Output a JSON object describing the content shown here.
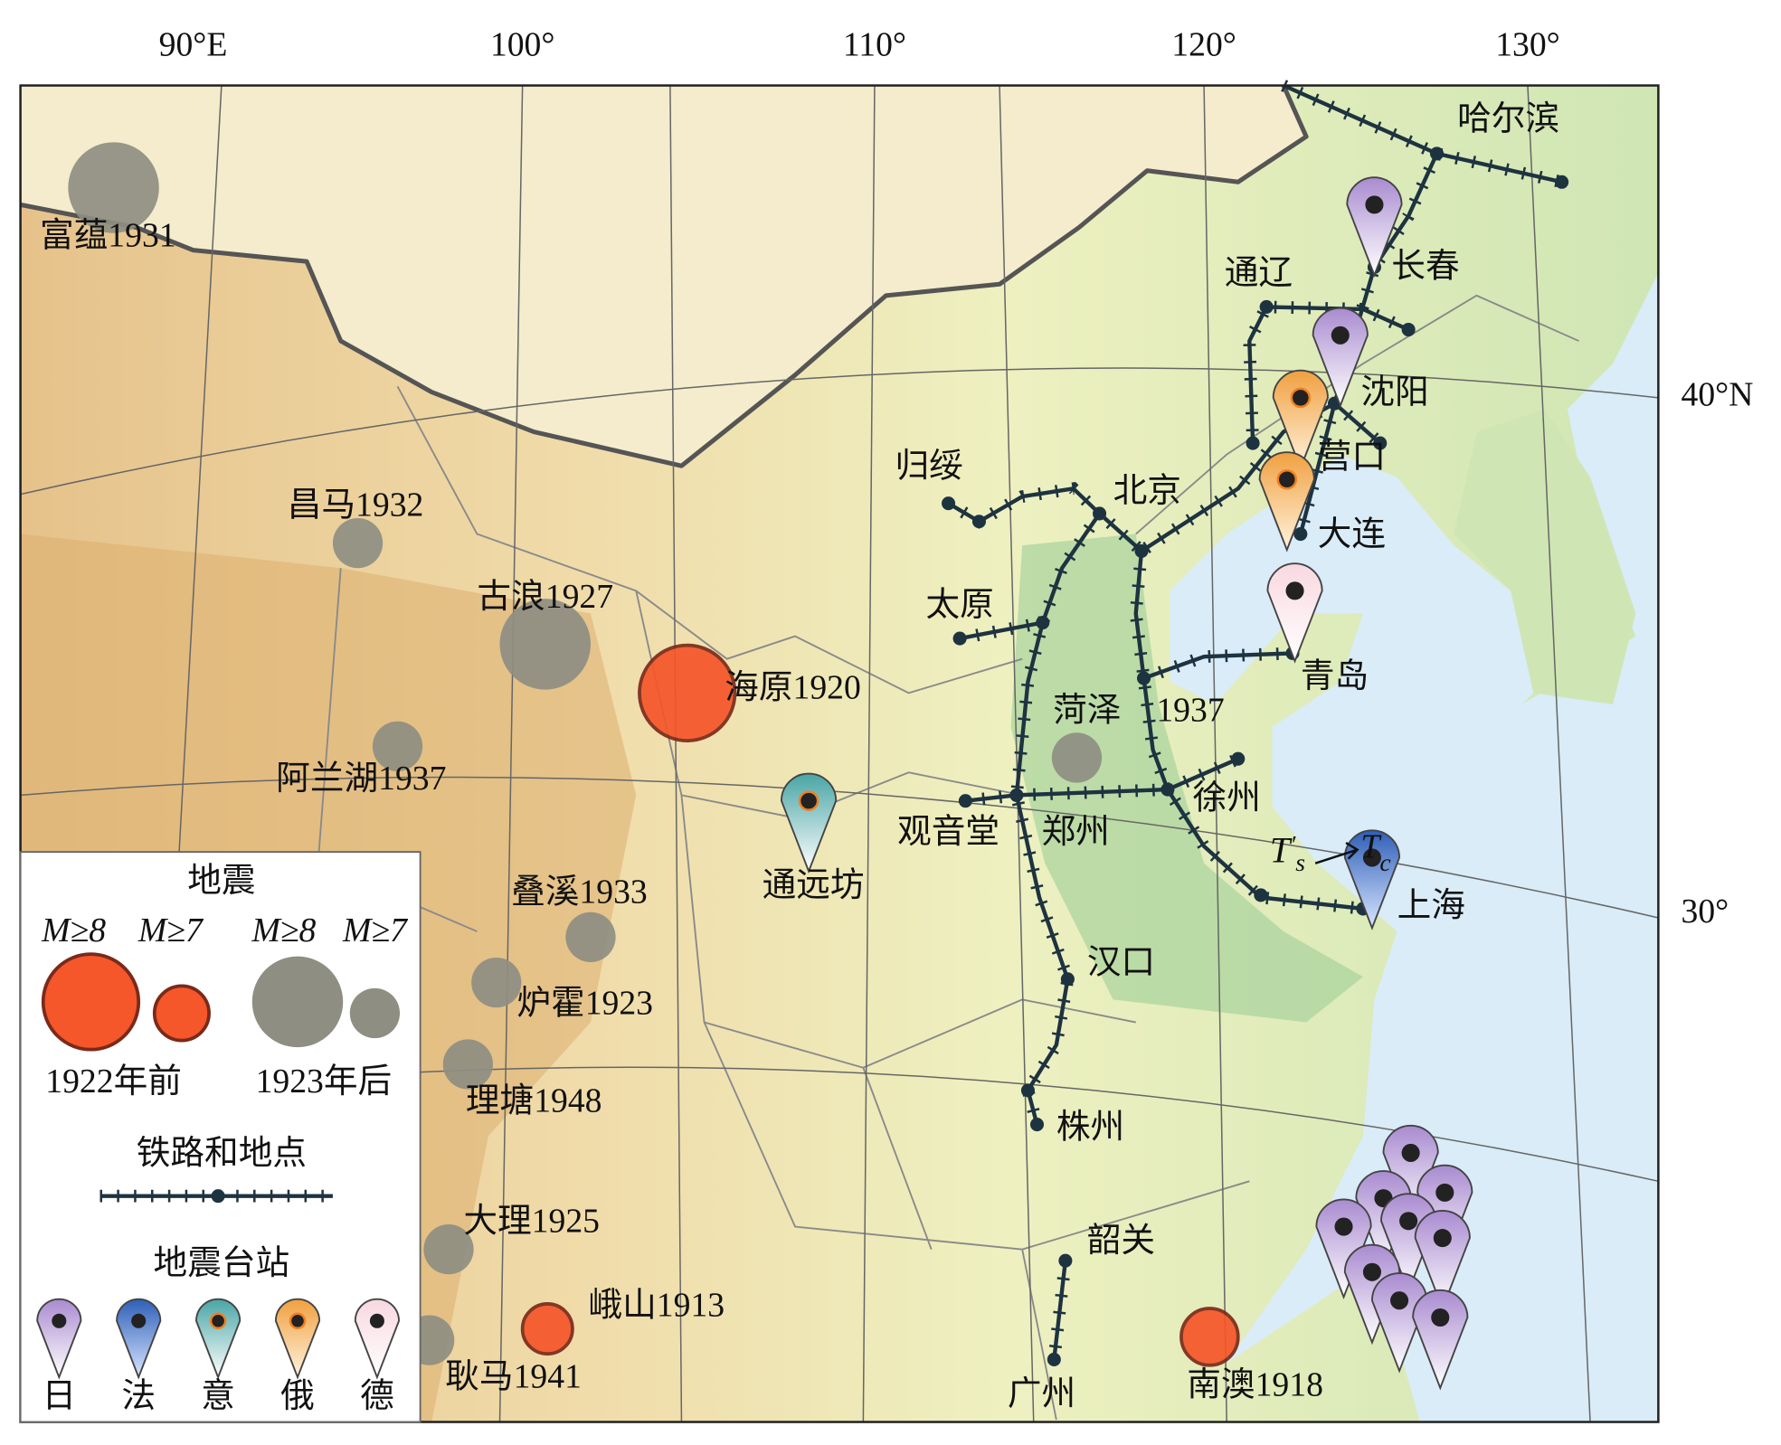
{
  "graticule": {
    "longitudes": [
      "90°E",
      "100°",
      "110°",
      "120°",
      "130°"
    ],
    "latitudes": [
      "40°N",
      "30°"
    ]
  },
  "earthquakes": [
    {
      "label": "富蕴1931"
    },
    {
      "label": "昌马1932"
    },
    {
      "label": "古浪1927"
    },
    {
      "label": "海原1920"
    },
    {
      "label": "阿兰湖1937"
    },
    {
      "label": "叠溪1933"
    },
    {
      "label": "炉霍1923"
    },
    {
      "label": "理塘1948"
    },
    {
      "label": "大理1925"
    },
    {
      "label": "峨山1913"
    },
    {
      "label": "耿马1941"
    },
    {
      "label": "南澳1918"
    },
    {
      "label": "菏泽",
      "year": "1937"
    }
  ],
  "cities": [
    "哈尔滨",
    "长春",
    "通辽",
    "沈阳",
    "营口",
    "大连",
    "归绥",
    "北京",
    "太原",
    "青岛",
    "观音堂",
    "郑州",
    "徐州",
    "上海",
    "汉口",
    "株州",
    "韶关",
    "广州",
    "通远坊"
  ],
  "annotation": {
    "left": {
      "base": "T",
      "prime": "′",
      "sub": "s"
    },
    "right": {
      "base": "T",
      "sub": "c"
    }
  },
  "legend": {
    "earthquakes": {
      "title": "地震",
      "magnitudes": [
        "M≥8",
        "M≥7",
        "M≥8",
        "M≥7"
      ],
      "periods": [
        "1922年前",
        "1923年后"
      ]
    },
    "railway": {
      "title": "铁路和地点"
    },
    "stations": {
      "title": "地震台站",
      "countries": [
        "日",
        "法",
        "意",
        "俄",
        "德"
      ]
    }
  }
}
